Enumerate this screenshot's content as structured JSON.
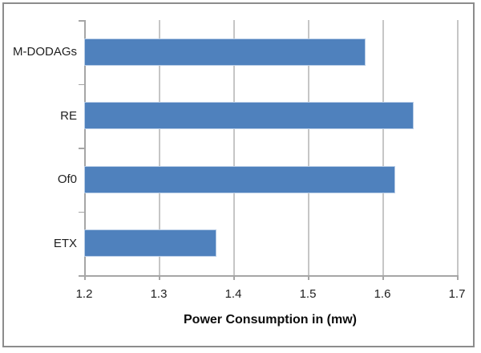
{
  "chart_data": {
    "type": "bar",
    "orientation": "horizontal",
    "title": "",
    "xlabel": "Power Consumption in (mw)",
    "ylabel": "",
    "categories": [
      "M-DODAGs",
      "RE",
      "Of0",
      "ETX"
    ],
    "values": [
      1.575,
      1.64,
      1.615,
      1.375
    ],
    "xlim": [
      1.2,
      1.7
    ],
    "xticks": [
      1.2,
      1.3,
      1.4,
      1.5,
      1.6,
      1.7
    ],
    "xtick_labels": [
      "1.2",
      "1.3",
      "1.4",
      "1.5",
      "1.6",
      "1.7"
    ],
    "grid": true,
    "legend": false,
    "colors": {
      "bar": "#4f81bd",
      "bar_edge": "#b7cce6",
      "gridline": "#c6c6c6",
      "axis": "#a6a6a6",
      "text": "#1f1f1f",
      "frame_border": "#8c8c8c",
      "background": "#ffffff"
    }
  }
}
